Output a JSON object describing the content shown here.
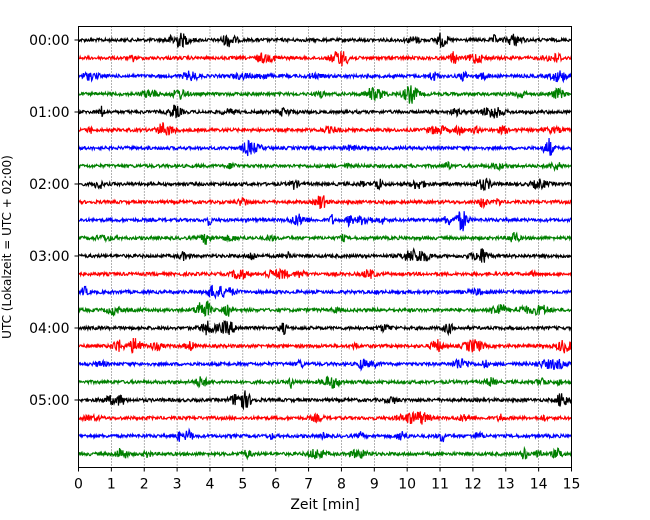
{
  "chart_data": {
    "type": "line",
    "title": "",
    "xlabel": "Zeit  [min]",
    "ylabel": "UTC (Lokalzeit = UTC + 02:00)",
    "xlim": [
      0,
      15
    ],
    "x_ticks": [
      "0",
      "1",
      "2",
      "3",
      "4",
      "5",
      "6",
      "7",
      "8",
      "9",
      "10",
      "11",
      "12",
      "13",
      "14",
      "15"
    ],
    "y_tick_labels": [
      "00:00",
      "01:00",
      "02:00",
      "03:00",
      "04:00",
      "05:00"
    ],
    "y_tick_rows": [
      0,
      4,
      8,
      12,
      16,
      20
    ],
    "grid": "vertical dotted at each minute",
    "trace_interval_min": 15,
    "trace_count": 24,
    "trace_colors": [
      "#000000",
      "#ff0000",
      "#0000ff",
      "#008000"
    ],
    "series": [
      {
        "start": "00:00"
      },
      {
        "start": "00:15"
      },
      {
        "start": "00:30"
      },
      {
        "start": "00:45"
      },
      {
        "start": "01:00"
      },
      {
        "start": "01:15"
      },
      {
        "start": "01:30"
      },
      {
        "start": "01:45"
      },
      {
        "start": "02:00"
      },
      {
        "start": "02:15"
      },
      {
        "start": "02:30"
      },
      {
        "start": "02:45"
      },
      {
        "start": "03:00"
      },
      {
        "start": "03:15"
      },
      {
        "start": "03:30"
      },
      {
        "start": "03:45"
      },
      {
        "start": "04:00"
      },
      {
        "start": "04:15"
      },
      {
        "start": "04:30"
      },
      {
        "start": "04:45"
      },
      {
        "start": "05:00"
      },
      {
        "start": "05:15"
      },
      {
        "start": "05:30"
      },
      {
        "start": "05:45"
      }
    ]
  }
}
